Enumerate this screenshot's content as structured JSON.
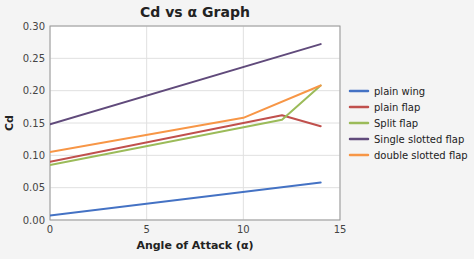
{
  "chart_data": {
    "type": "line",
    "title": "Cd vs α Graph",
    "x_label": "Angle of Attack (α)",
    "y_label": "Cd",
    "xlim": [
      0,
      15
    ],
    "ylim": [
      0,
      0.3
    ],
    "xticks": [
      0,
      5,
      10,
      15
    ],
    "yticks": [
      {
        "value": 0,
        "label": "0.00"
      },
      0.05,
      {
        "value": 0.1,
        "label": "0.10"
      },
      0.15,
      {
        "value": 0.2,
        "label": "0.20"
      },
      0.25,
      {
        "value": 0.3,
        "label": "0.30"
      }
    ],
    "grid": true,
    "legend": "right",
    "series": [
      {
        "name": "plain wing",
        "color": "#4472c4",
        "x": [
          0,
          14
        ],
        "values": [
          0.007,
          0.058
        ]
      },
      {
        "name": "plain flap",
        "color": "#c0504d",
        "x": [
          0,
          12,
          14
        ],
        "values": [
          0.09,
          0.162,
          0.145
        ]
      },
      {
        "name": "Split flap",
        "color": "#9bbb59",
        "x": [
          0,
          12,
          14
        ],
        "values": [
          0.085,
          0.155,
          0.208
        ]
      },
      {
        "name": "Single slotted flap",
        "color": "#604a7b",
        "x": [
          0,
          14
        ],
        "values": [
          0.148,
          0.272
        ]
      },
      {
        "name": "double slotted flap",
        "color": "#f79646",
        "x": [
          0,
          10,
          14
        ],
        "values": [
          0.105,
          0.158,
          0.208
        ]
      }
    ]
  }
}
